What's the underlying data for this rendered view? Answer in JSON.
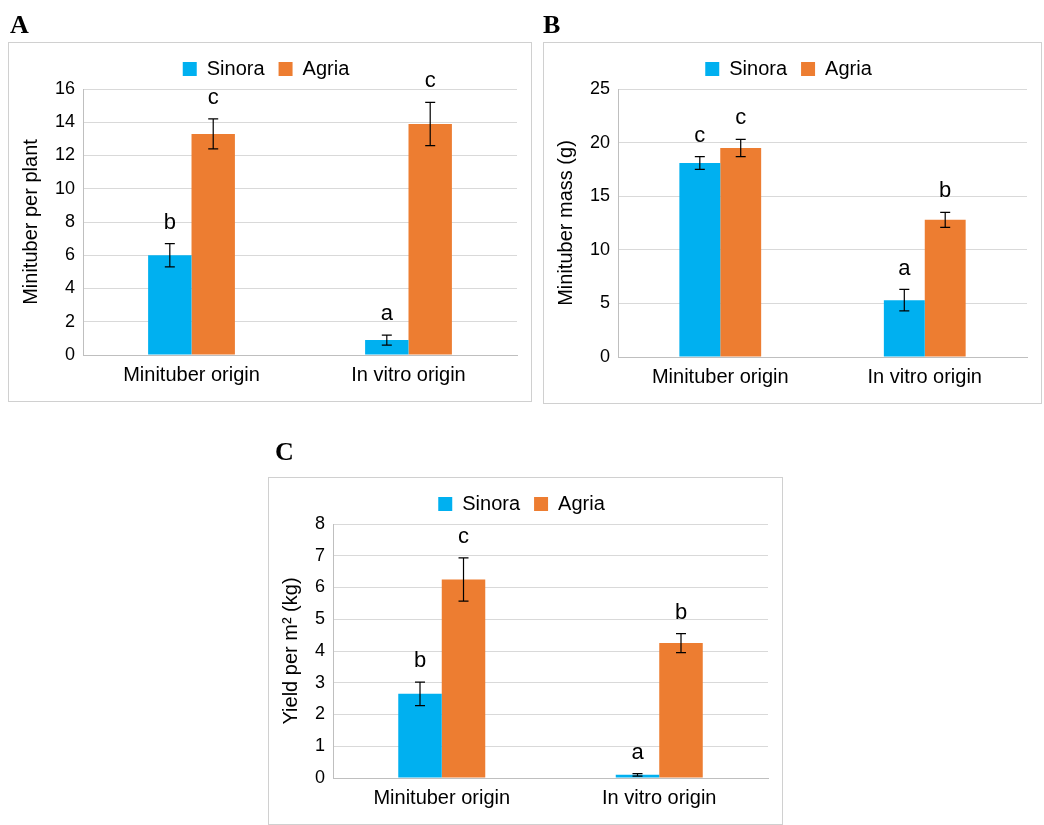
{
  "chart_data": [
    {
      "type": "bar",
      "title": "A",
      "ylabel": "Minituber per plant",
      "categories": [
        "Minituber origin",
        "In vitro origin"
      ],
      "series": [
        {
          "name": "Sinora",
          "color": "#00b0f0",
          "values": [
            6.0,
            0.9
          ],
          "errors": [
            0.7,
            0.3
          ]
        },
        {
          "name": "Agria",
          "color": "#ed7d31",
          "values": [
            13.3,
            13.9
          ],
          "errors": [
            0.9,
            1.3
          ]
        }
      ],
      "ylim": [
        0,
        16
      ],
      "yticks": [
        0,
        2,
        4,
        6,
        8,
        10,
        12,
        14,
        16
      ],
      "grid": "y",
      "legend": "top",
      "annotations": [
        "b",
        "c",
        "a",
        "c"
      ]
    },
    {
      "type": "bar",
      "title": "B",
      "ylabel": "Minituber mass (g)",
      "categories": [
        "Minituber origin",
        "In vitro origin"
      ],
      "series": [
        {
          "name": "Sinora",
          "color": "#00b0f0",
          "values": [
            18.1,
            5.3
          ],
          "errors": [
            0.6,
            1.0
          ]
        },
        {
          "name": "Agria",
          "color": "#ed7d31",
          "values": [
            19.5,
            12.8
          ],
          "errors": [
            0.8,
            0.7
          ]
        }
      ],
      "ylim": [
        0,
        25
      ],
      "yticks": [
        0,
        5,
        10,
        15,
        20,
        25
      ],
      "grid": "y",
      "legend": "top",
      "annotations": [
        "c",
        "c",
        "a",
        "b"
      ]
    },
    {
      "type": "bar",
      "title": "C",
      "ylabel": "Yield per m² (kg)",
      "categories": [
        "Minituber origin",
        "In vitro origin"
      ],
      "series": [
        {
          "name": "Sinora",
          "color": "#00b0f0",
          "values": [
            2.65,
            0.1
          ],
          "errors": [
            0.37,
            0.04
          ]
        },
        {
          "name": "Agria",
          "color": "#ed7d31",
          "values": [
            6.25,
            4.25
          ],
          "errors": [
            0.68,
            0.3
          ]
        }
      ],
      "ylim": [
        0,
        8
      ],
      "yticks": [
        0,
        1,
        2,
        3,
        4,
        5,
        6,
        7,
        8
      ],
      "grid": "y",
      "legend": "top",
      "annotations": [
        "b",
        "c",
        "a",
        "b"
      ]
    }
  ]
}
